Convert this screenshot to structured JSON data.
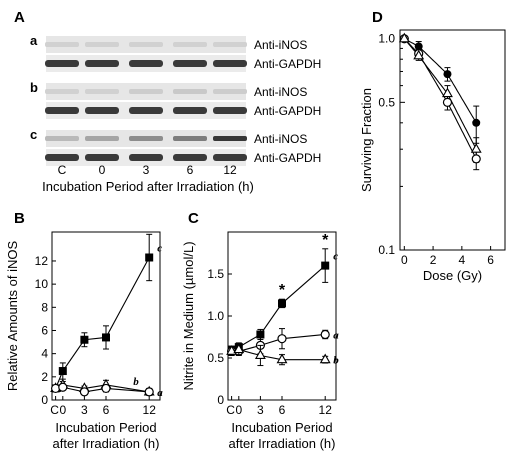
{
  "panel_a": {
    "letter": "A",
    "rows": [
      "a",
      "b",
      "c"
    ],
    "band_labels": [
      "Anti-iNOS",
      "Anti-GAPDH"
    ],
    "lanes": [
      "C",
      "0",
      "3",
      "6",
      "12"
    ],
    "xlabel": "Incubation Period after Irradiation (h)",
    "inos_intensity": {
      "a": [
        0.08,
        0.08,
        0.08,
        0.08,
        0.08
      ],
      "b": [
        0.08,
        0.08,
        0.1,
        0.12,
        0.1
      ],
      "c": [
        0.2,
        0.3,
        0.42,
        0.5,
        0.85
      ]
    }
  },
  "chart_data": [
    {
      "panel": "B",
      "type": "line",
      "ylabel": "Relative Amounts of iNOS",
      "xlabel": "Incubation Period after Irradiation (h)",
      "x_ticks": [
        "C",
        "0",
        "3",
        "6",
        "12"
      ],
      "y_ticks": [
        "0",
        "2",
        "4",
        "6",
        "8",
        "10",
        "12"
      ],
      "xlim": [
        -1.5,
        13.5
      ],
      "ylim": [
        0,
        14.5
      ],
      "series": [
        {
          "name": "c",
          "marker": "square-filled",
          "x": [
            -1,
            0,
            3,
            6,
            12
          ],
          "y": [
            1.0,
            2.5,
            5.2,
            5.4,
            12.3
          ],
          "err": [
            0.2,
            0.7,
            0.6,
            1.0,
            2.0
          ]
        },
        {
          "name": "b",
          "marker": "triangle-open",
          "x": [
            -1,
            0,
            3,
            6,
            12
          ],
          "y": [
            1.0,
            1.3,
            1.0,
            1.3,
            0.7
          ],
          "err": [
            0.2,
            0.3,
            0.2,
            0.4,
            0.3
          ]
        },
        {
          "name": "a",
          "marker": "circle-open",
          "x": [
            -1,
            0,
            3,
            6,
            12
          ],
          "y": [
            1.0,
            1.1,
            0.7,
            1.0,
            0.7
          ],
          "err": [
            0.2,
            0.2,
            0.2,
            0.3,
            0.2
          ]
        }
      ]
    },
    {
      "panel": "C",
      "type": "line",
      "ylabel": "Nitrite in Medium (µmol/L)",
      "xlabel": "Incubation Period after Irradiation (h)",
      "x_ticks": [
        "C",
        "0",
        "3",
        "6",
        "12"
      ],
      "y_ticks": [
        "0",
        "0.5",
        "1.0",
        "1.5"
      ],
      "xlim": [
        -1.5,
        13.5
      ],
      "ylim": [
        0,
        2.0
      ],
      "annotations": [
        {
          "text": "*",
          "x": 6
        },
        {
          "text": "*",
          "x": 12
        }
      ],
      "series": [
        {
          "name": "c",
          "marker": "square-filled",
          "x": [
            -1,
            0,
            3,
            6,
            12
          ],
          "y": [
            0.6,
            0.63,
            0.78,
            1.15,
            1.6
          ],
          "err": [
            0.04,
            0.05,
            0.06,
            0.05,
            0.2
          ]
        },
        {
          "name": "a",
          "marker": "circle-open",
          "x": [
            -1,
            0,
            3,
            6,
            12
          ],
          "y": [
            0.58,
            0.58,
            0.65,
            0.73,
            0.78
          ],
          "err": [
            0.05,
            0.05,
            0.1,
            0.12,
            0.05
          ]
        },
        {
          "name": "b",
          "marker": "triangle-open",
          "x": [
            -1,
            0,
            3,
            6,
            12
          ],
          "y": [
            0.58,
            0.6,
            0.53,
            0.48,
            0.48
          ],
          "err": [
            0.05,
            0.06,
            0.12,
            0.06,
            0.04
          ]
        }
      ]
    },
    {
      "panel": "D",
      "type": "scatter",
      "ylabel": "Surviving Fraction",
      "xlabel": "Dose (Gy)",
      "x_ticks": [
        "0",
        "2",
        "4",
        "6"
      ],
      "y_ticks": [
        "1.0",
        "0.5",
        "0.1"
      ],
      "xlim": [
        -0.3,
        7
      ],
      "ylim": [
        0.1,
        1.1
      ],
      "y_scale": "log",
      "series": [
        {
          "name": "filled circle",
          "marker": "circle-filled",
          "x": [
            0,
            1,
            3,
            5
          ],
          "y": [
            1.0,
            0.92,
            0.68,
            0.4
          ],
          "err": [
            0,
            0.05,
            0.05,
            0.08
          ]
        },
        {
          "name": "open circle",
          "marker": "circle-open",
          "x": [
            0,
            1,
            3,
            5
          ],
          "y": [
            1.0,
            0.85,
            0.5,
            0.27
          ],
          "err": [
            0,
            0.04,
            0.04,
            0.03
          ]
        },
        {
          "name": "open triangle",
          "marker": "triangle-open",
          "x": [
            0,
            1,
            3,
            5
          ],
          "y": [
            1.0,
            0.83,
            0.55,
            0.3
          ],
          "err": [
            0,
            0.04,
            0.05,
            0.04
          ]
        }
      ]
    }
  ],
  "panel_labels": {
    "B": "B",
    "C": "C",
    "D": "D"
  }
}
